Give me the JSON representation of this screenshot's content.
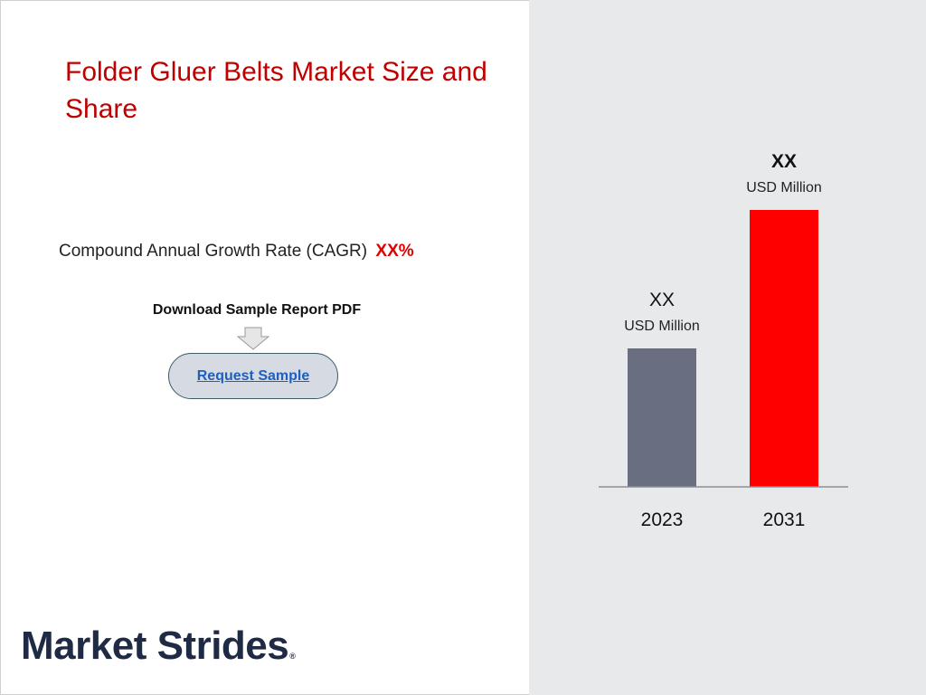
{
  "title": "Folder Gluer Belts Market Size and Share",
  "cagr": {
    "label": "Compound Annual Growth Rate (CAGR)",
    "value": "XX%"
  },
  "download": {
    "label": "Download Sample Report PDF",
    "button_label": "Request Sample"
  },
  "logo": {
    "text": "Market Strides",
    "mark": "®"
  },
  "colors": {
    "title": "#c00000",
    "bar_2023": "#696e80",
    "bar_2031": "#ff0000",
    "panel": "#e8e9eb"
  },
  "chart_data": {
    "type": "bar",
    "categories": [
      "2023",
      "2031"
    ],
    "values": [
      50,
      100
    ],
    "bar_colors": [
      "#696e80",
      "#ff0000"
    ],
    "data_labels": [
      {
        "value": "XX",
        "unit": "USD Million"
      },
      {
        "value": "XX",
        "unit": "USD Million"
      }
    ],
    "title": "",
    "xlabel": "",
    "ylabel": "",
    "ylim": [
      0,
      100
    ],
    "grid": false,
    "legend": "none"
  }
}
